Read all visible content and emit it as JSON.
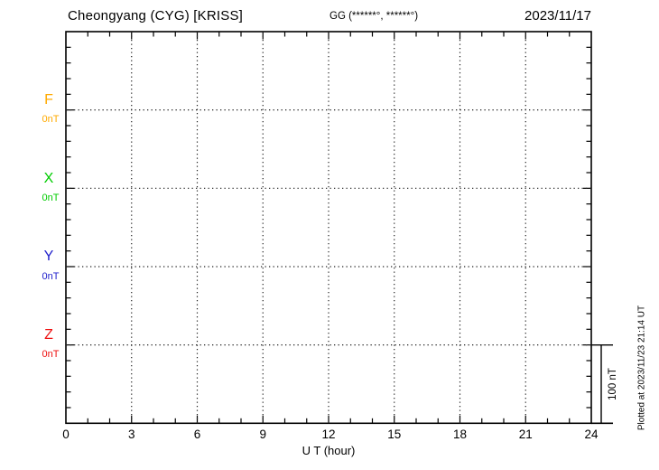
{
  "header": {
    "title": "Cheongyang (CYG)  [KRISS]",
    "coords_label": "GG (******°, ******°)",
    "date": "2023/11/17"
  },
  "chart_data": {
    "type": "line",
    "title": "Cheongyang (CYG)  [KRISS]",
    "subtitle": "GG (******°, ******°)",
    "date": "2023/11/17",
    "x_axis": {
      "label": "U T (hour)",
      "min": 0,
      "max": 24,
      "minor_tick_interval": 1,
      "major_tick_interval": 3,
      "tick_labels": [
        "0",
        "3",
        "6",
        "9",
        "12",
        "15",
        "18",
        "21",
        "24"
      ]
    },
    "grid": {
      "vertical_dotted_gridline_hours": [
        3,
        6,
        9,
        12,
        15,
        18,
        21
      ],
      "horizontal_dotted_baselines": [
        "F",
        "X",
        "Y",
        "Z"
      ]
    },
    "components": [
      {
        "name": "F",
        "baseline_label": "0nT",
        "color": "#FFAA00",
        "values": []
      },
      {
        "name": "X",
        "baseline_label": "0nT",
        "color": "#00CC00",
        "values": []
      },
      {
        "name": "Y",
        "baseline_label": "0nT",
        "color": "#2222CC",
        "values": []
      },
      {
        "name": "Z",
        "baseline_label": "0nT",
        "color": "#EE1111",
        "values": []
      }
    ],
    "scale_bar": {
      "label": "100 nT",
      "value_nT": 100
    },
    "footer": {
      "plotted_at": "Plotted at 2023/11/23 21:14 UT"
    }
  }
}
